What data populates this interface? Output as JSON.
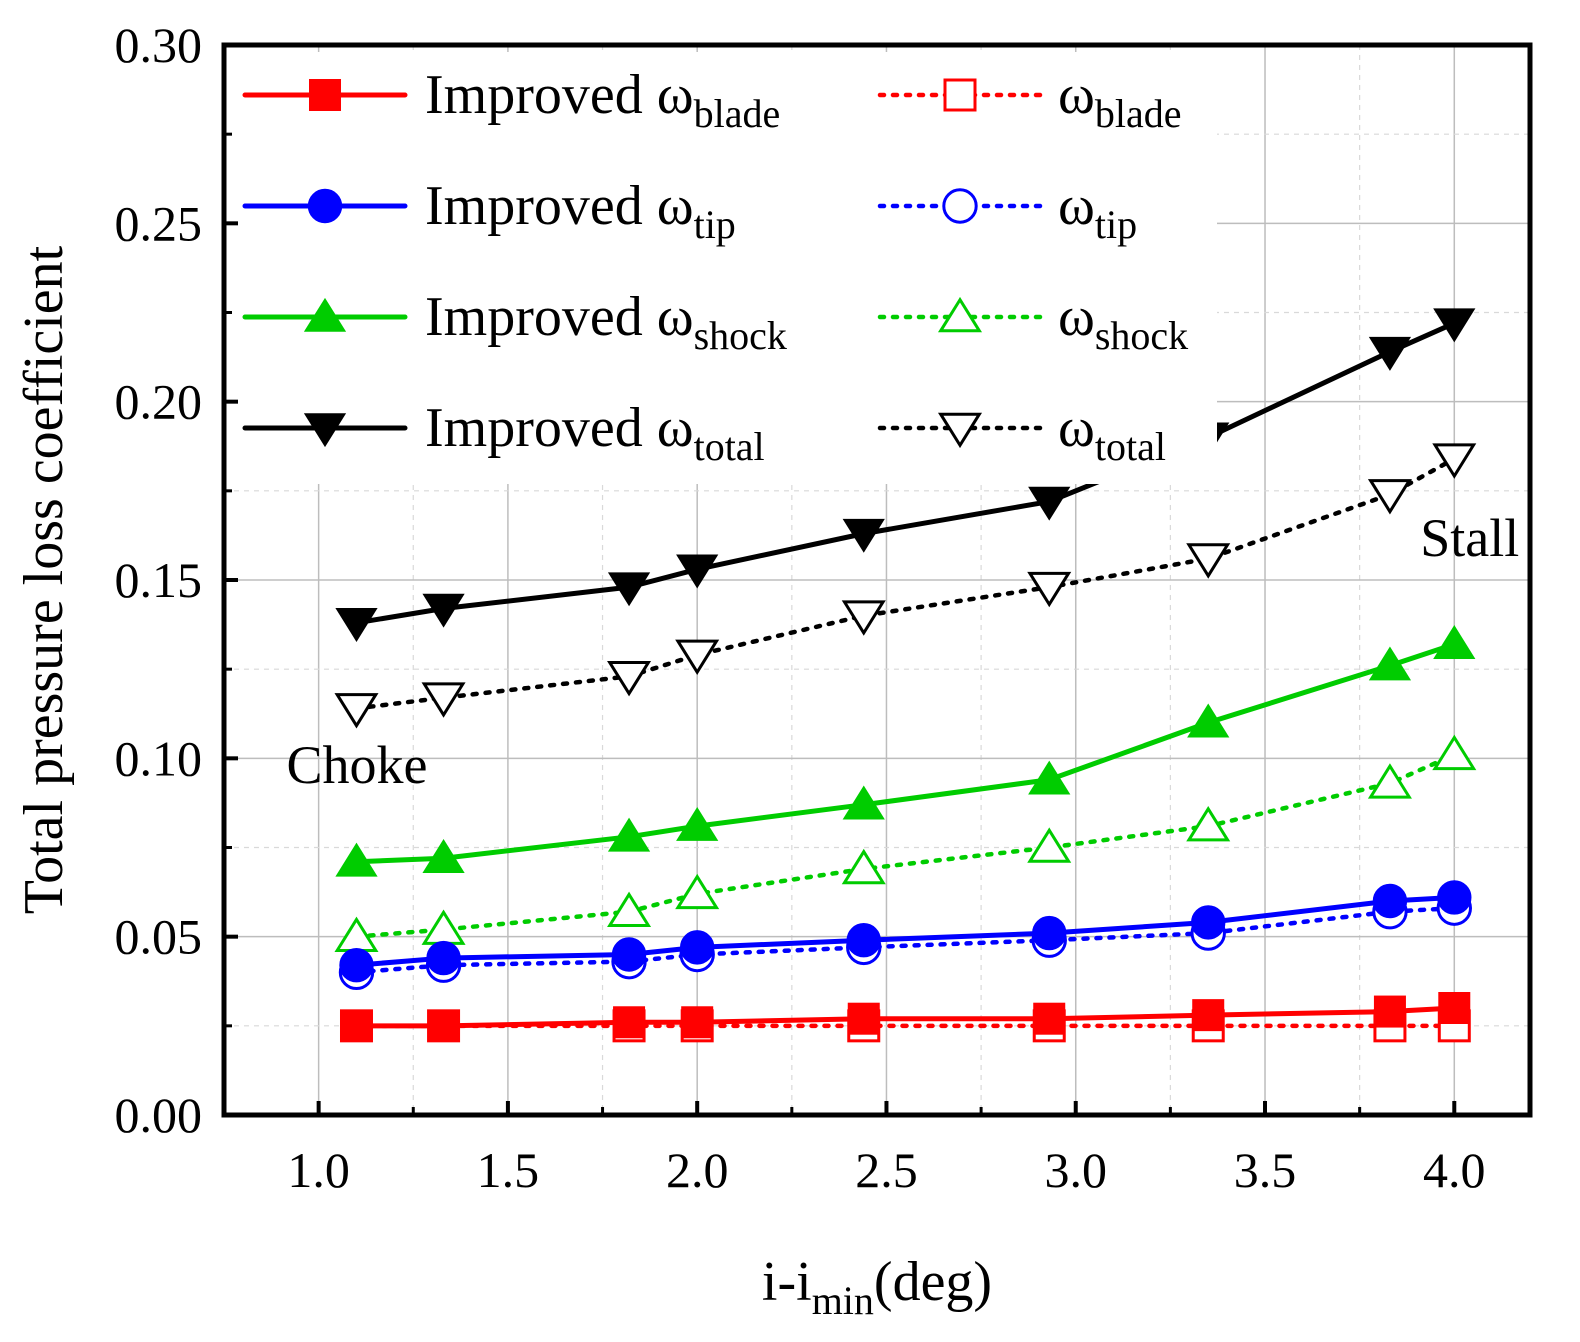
{
  "chart_data": {
    "type": "line",
    "xlabel": "i-i",
    "xlabel_sub": "min",
    "xlabel_suffix": "(deg)",
    "ylabel": "Total pressure loss coefficient",
    "xlim": [
      0.75,
      4.2
    ],
    "ylim": [
      0.0,
      0.3
    ],
    "xticks": [
      1.0,
      1.5,
      2.0,
      2.5,
      3.0,
      3.5,
      4.0
    ],
    "xtick_labels": [
      "1.0",
      "1.5",
      "2.0",
      "2.5",
      "3.0",
      "3.5",
      "4.0"
    ],
    "yticks": [
      0.0,
      0.05,
      0.1,
      0.15,
      0.2,
      0.25,
      0.3
    ],
    "ytick_labels": [
      "0.00",
      "0.05",
      "0.10",
      "0.15",
      "0.20",
      "0.25",
      "0.30"
    ],
    "grid": true,
    "x": [
      1.1,
      1.33,
      1.82,
      2.0,
      2.44,
      2.93,
      3.35,
      3.83,
      4.0
    ],
    "series": [
      {
        "name": "Improved ω_blade",
        "prefix": "Improved ",
        "symbol": "ω",
        "sub": "blade",
        "color": "#ff0000",
        "marker": "square",
        "filled": true,
        "dash": "solid",
        "values": [
          0.025,
          0.025,
          0.026,
          0.026,
          0.027,
          0.027,
          0.028,
          0.029,
          0.03
        ]
      },
      {
        "name": "ω_blade",
        "prefix": "",
        "symbol": "ω",
        "sub": "blade",
        "color": "#ff0000",
        "marker": "square",
        "filled": false,
        "dash": "dotted",
        "values": [
          0.025,
          0.025,
          0.025,
          0.025,
          0.025,
          0.025,
          0.025,
          0.025,
          0.025
        ]
      },
      {
        "name": "Improved ω_tip",
        "prefix": "Improved ",
        "symbol": "ω",
        "sub": "tip",
        "color": "#0000ff",
        "marker": "circle",
        "filled": true,
        "dash": "solid",
        "values": [
          0.042,
          0.044,
          0.045,
          0.047,
          0.049,
          0.051,
          0.054,
          0.06,
          0.061
        ]
      },
      {
        "name": "ω_tip",
        "prefix": "",
        "symbol": "ω",
        "sub": "tip",
        "color": "#0000ff",
        "marker": "circle",
        "filled": false,
        "dash": "dotted",
        "values": [
          0.04,
          0.042,
          0.043,
          0.045,
          0.047,
          0.049,
          0.051,
          0.057,
          0.058
        ]
      },
      {
        "name": "Improved ω_shock",
        "prefix": "Improved ",
        "symbol": "ω",
        "sub": "shock",
        "color": "#00cc00",
        "marker": "triangle-up",
        "filled": true,
        "dash": "solid",
        "values": [
          0.071,
          0.072,
          0.078,
          0.081,
          0.087,
          0.094,
          0.11,
          0.126,
          0.132
        ]
      },
      {
        "name": "ω_shock",
        "prefix": "",
        "symbol": "ω",
        "sub": "shock",
        "color": "#00cc00",
        "marker": "triangle-up",
        "filled": false,
        "dash": "dotted",
        "values": [
          0.05,
          0.052,
          0.057,
          0.062,
          0.069,
          0.075,
          0.081,
          0.093,
          0.101
        ]
      },
      {
        "name": "Improved ω_total",
        "prefix": "Improved ",
        "symbol": "ω",
        "sub": "total",
        "color": "#000000",
        "marker": "triangle-down",
        "filled": true,
        "dash": "solid",
        "values": [
          0.138,
          0.142,
          0.148,
          0.153,
          0.163,
          0.172,
          0.19,
          0.214,
          0.222
        ]
      },
      {
        "name": "ω_total",
        "prefix": "",
        "symbol": "ω",
        "sub": "total",
        "color": "#000000",
        "marker": "triangle-down",
        "filled": false,
        "dash": "dotted",
        "values": [
          0.114,
          0.117,
          0.123,
          0.129,
          0.14,
          0.148,
          0.156,
          0.174,
          0.184
        ]
      }
    ],
    "annotations": [
      {
        "text": "Choke",
        "near": "left end of series"
      },
      {
        "text": "Stall",
        "near": "right end of series"
      }
    ],
    "legend": {
      "placement": "top-left",
      "columns": 2
    }
  }
}
